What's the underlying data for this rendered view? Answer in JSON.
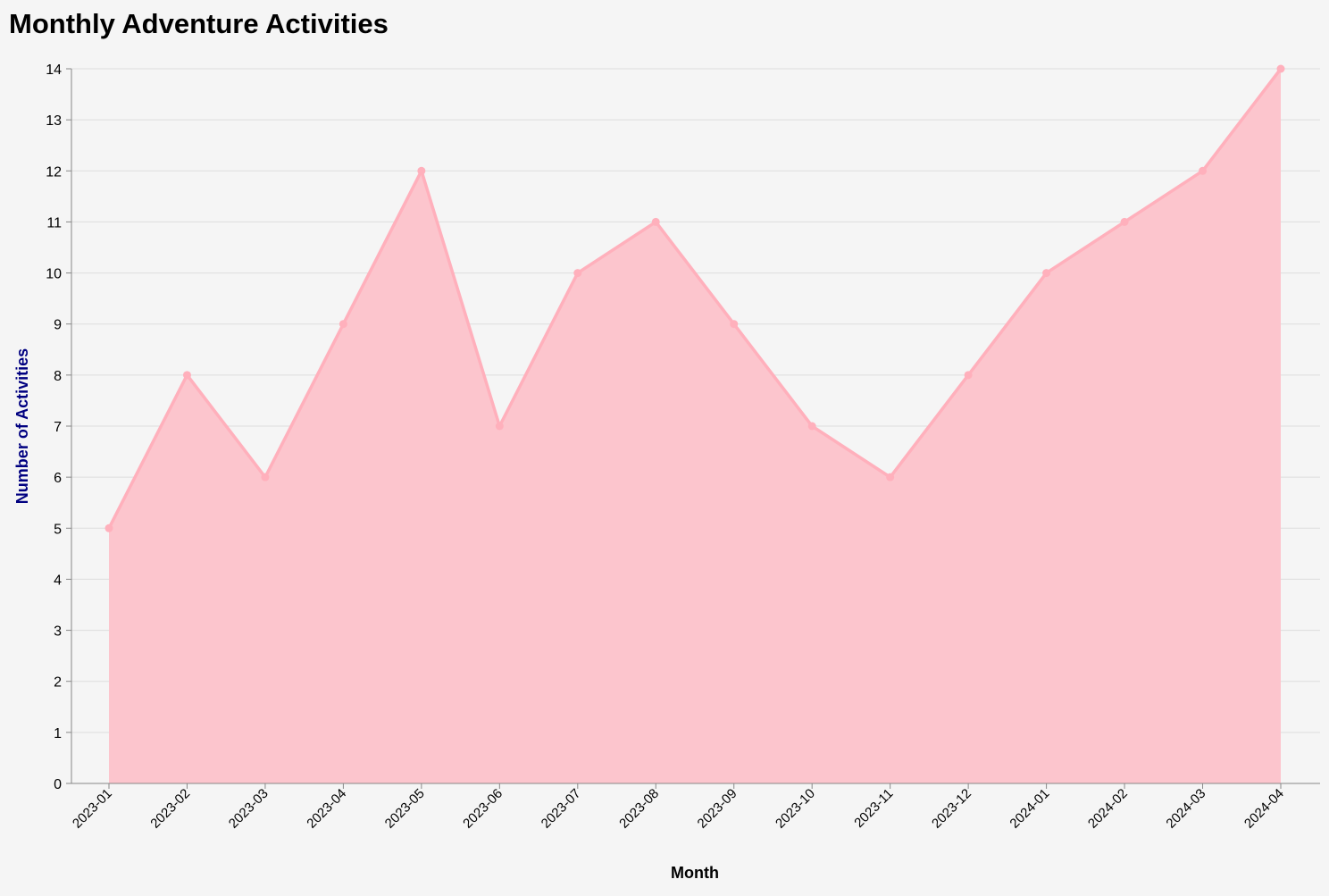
{
  "chart_data": {
    "type": "area",
    "title": "Monthly Adventure Activities",
    "xlabel": "Month",
    "ylabel": "Number of Activities",
    "categories": [
      "2023-01",
      "2023-02",
      "2023-03",
      "2023-04",
      "2023-05",
      "2023-06",
      "2023-07",
      "2023-08",
      "2023-09",
      "2023-10",
      "2023-11",
      "2023-12",
      "2024-01",
      "2024-02",
      "2024-03",
      "2024-04"
    ],
    "values": [
      5,
      8,
      6,
      9,
      12,
      7,
      10,
      11,
      9,
      7,
      6,
      8,
      10,
      11,
      12,
      14
    ],
    "ylim": [
      0,
      14
    ],
    "yticks": [
      0,
      1,
      2,
      3,
      4,
      5,
      6,
      7,
      8,
      9,
      10,
      11,
      12,
      13,
      14
    ],
    "grid": true,
    "colors": {
      "area_fill": "#fcc5cd",
      "line": "#ffb0bc",
      "point": "#ffb0bc",
      "ylabel_text": "#000080",
      "gridline": "#dddddd",
      "axis": "#888888",
      "background": "#f5f5f5"
    }
  }
}
